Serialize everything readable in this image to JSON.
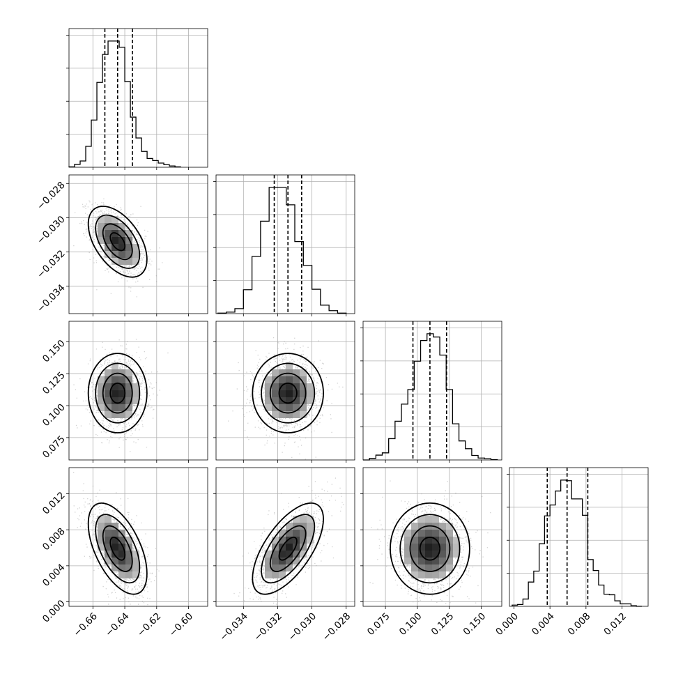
{
  "chart_data": {
    "type": "scatter",
    "title": "",
    "parameter_labels": [
      "",
      "",
      "",
      ""
    ],
    "parameters": [
      {
        "axis_range": [
          -0.675,
          -0.588
        ],
        "tick_values": [
          -0.66,
          -0.64,
          -0.62,
          -0.6
        ],
        "tick_labels": [
          "−0.66",
          "−0.64",
          "−0.62",
          "−0.60"
        ],
        "median": -0.6445,
        "q16": -0.6525,
        "q84": -0.6352,
        "hist_bins": [
          -0.675,
          -0.6715,
          -0.668,
          -0.6645,
          -0.661,
          -0.6575,
          -0.654,
          -0.6505,
          -0.647,
          -0.6435,
          -0.64,
          -0.6365,
          -0.633,
          -0.6295,
          -0.626,
          -0.6225,
          -0.619,
          -0.6155,
          -0.612,
          -0.6085,
          -0.605
        ],
        "hist_counts": [
          1,
          7,
          15,
          50,
          113,
          203,
          270,
          302,
          302,
          287,
          205,
          120,
          70,
          38,
          21,
          16,
          10,
          6,
          3,
          1
        ]
      },
      {
        "axis_range": [
          -0.0356,
          -0.0275
        ],
        "tick_values": [
          -0.034,
          -0.032,
          -0.03,
          -0.028
        ],
        "tick_labels": [
          "−0.034",
          "−0.032",
          "−0.030",
          "−0.028"
        ],
        "median": -0.0314,
        "q16": -0.0322,
        "q84": -0.0306,
        "hist_bins": [
          -0.0355,
          -0.035,
          -0.0345,
          -0.034,
          -0.0335,
          -0.033,
          -0.0325,
          -0.032,
          -0.0315,
          -0.031,
          -0.0305,
          -0.03,
          -0.0295,
          -0.029,
          -0.0285,
          -0.028
        ],
        "hist_counts": [
          1,
          3,
          10,
          48,
          115,
          186,
          254,
          254,
          219,
          145,
          97,
          49,
          17,
          6,
          1
        ]
      },
      {
        "axis_range": [
          0.0575,
          0.166
        ],
        "tick_values": [
          0.075,
          0.1,
          0.125,
          0.15
        ],
        "tick_labels": [
          "0.075",
          "0.100",
          "0.125",
          "0.150"
        ],
        "median": 0.1098,
        "q16": 0.0965,
        "q84": 0.1228,
        "hist_bins": [
          0.0575,
          0.0625,
          0.0675,
          0.0725,
          0.0775,
          0.0825,
          0.0875,
          0.0925,
          0.0975,
          0.1025,
          0.1075,
          0.1125,
          0.1175,
          0.1225,
          0.1275,
          0.1325,
          0.1375,
          0.1425,
          0.1475,
          0.1525,
          0.1575,
          0.1625
        ],
        "hist_counts": [
          0,
          5,
          15,
          22,
          66,
          120,
          173,
          218,
          306,
          370,
          391,
          381,
          325,
          218,
          112,
          59,
          35,
          14,
          6,
          4,
          1
        ]
      },
      {
        "axis_range": [
          -0.0005,
          0.0149
        ],
        "tick_values": [
          0.0,
          0.004,
          0.008,
          0.012
        ],
        "tick_labels": [
          "0.000",
          "0.004",
          "0.008",
          "0.012"
        ],
        "median": 0.0059,
        "q16": 0.0037,
        "q84": 0.0082,
        "hist_bins": [
          -0.0002,
          0.0004,
          0.001,
          0.0016,
          0.0022,
          0.0028,
          0.0034,
          0.004,
          0.0046,
          0.0052,
          0.0058,
          0.0064,
          0.007,
          0.0076,
          0.0082,
          0.0088,
          0.0094,
          0.01,
          0.0106,
          0.0112,
          0.0118,
          0.0124,
          0.013,
          0.0136,
          0.0142
        ],
        "hist_counts": [
          2,
          3,
          12,
          40,
          58,
          103,
          149,
          167,
          190,
          208,
          207,
          177,
          177,
          150,
          77,
          59,
          35,
          20,
          19,
          9,
          4,
          4,
          1,
          0
        ]
      }
    ],
    "pairs": [
      {
        "row": 1,
        "col": 0,
        "mean": [
          -0.6445,
          -0.0314
        ],
        "sd": [
          0.008,
          0.0009
        ],
        "corr": -0.5
      },
      {
        "row": 2,
        "col": 0,
        "mean": [
          -0.6445,
          0.1098
        ],
        "sd": [
          0.008,
          0.0135
        ],
        "corr": 0.0
      },
      {
        "row": 2,
        "col": 1,
        "mean": [
          -0.0314,
          0.1098
        ],
        "sd": [
          0.0009,
          0.0135
        ],
        "corr": 0.0
      },
      {
        "row": 3,
        "col": 0,
        "mean": [
          -0.6445,
          0.0059
        ],
        "sd": [
          0.008,
          0.0022
        ],
        "corr": -0.55
      },
      {
        "row": 3,
        "col": 1,
        "mean": [
          -0.0314,
          0.0059
        ],
        "sd": [
          0.0009,
          0.0022
        ],
        "corr": 0.65
      },
      {
        "row": 3,
        "col": 2,
        "mean": [
          0.1098,
          0.0059
        ],
        "sd": [
          0.0135,
          0.0022
        ],
        "corr": 0.0
      }
    ],
    "contour_levels_sigma": [
      0.5,
      1.0,
      1.5,
      2.0
    ],
    "grid": true,
    "legend": "none"
  }
}
